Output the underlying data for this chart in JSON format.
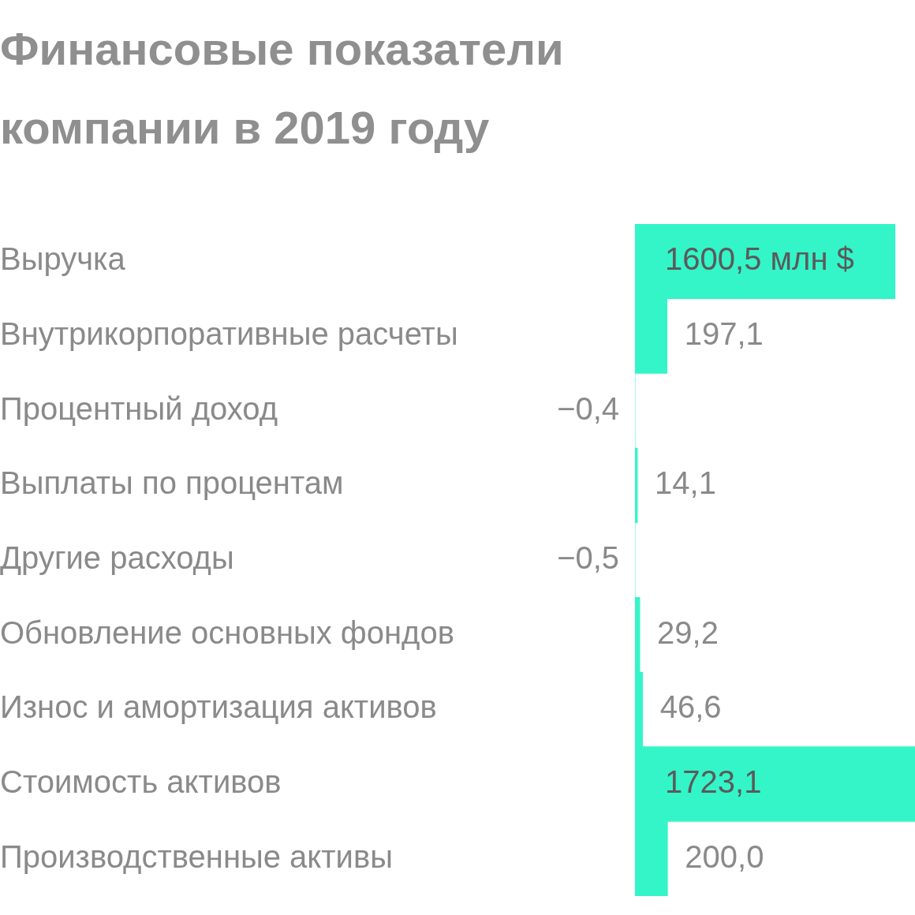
{
  "chart_data": {
    "type": "bar",
    "orientation": "horizontal",
    "title": "Финансовые показатели компании в 2019 году",
    "categories": [
      "Выручка",
      "Внутрикорпоративные расчеты",
      "Процентный доход",
      "Выплаты по процентам",
      "Другие расходы",
      "Обновление основных фондов",
      "Износ и амортизация активов",
      "Стоимость активов",
      "Производственные активы"
    ],
    "values": [
      1600.5,
      197.1,
      -0.4,
      14.1,
      -0.5,
      29.2,
      46.6,
      1723.1,
      200.0
    ],
    "value_labels": [
      "1600,5 млн $",
      "197,1",
      "−0,4",
      "14,1",
      "−0,5",
      "29,2",
      "46,6",
      "1723,1",
      "200,0"
    ],
    "color": "#33f5c8"
  }
}
